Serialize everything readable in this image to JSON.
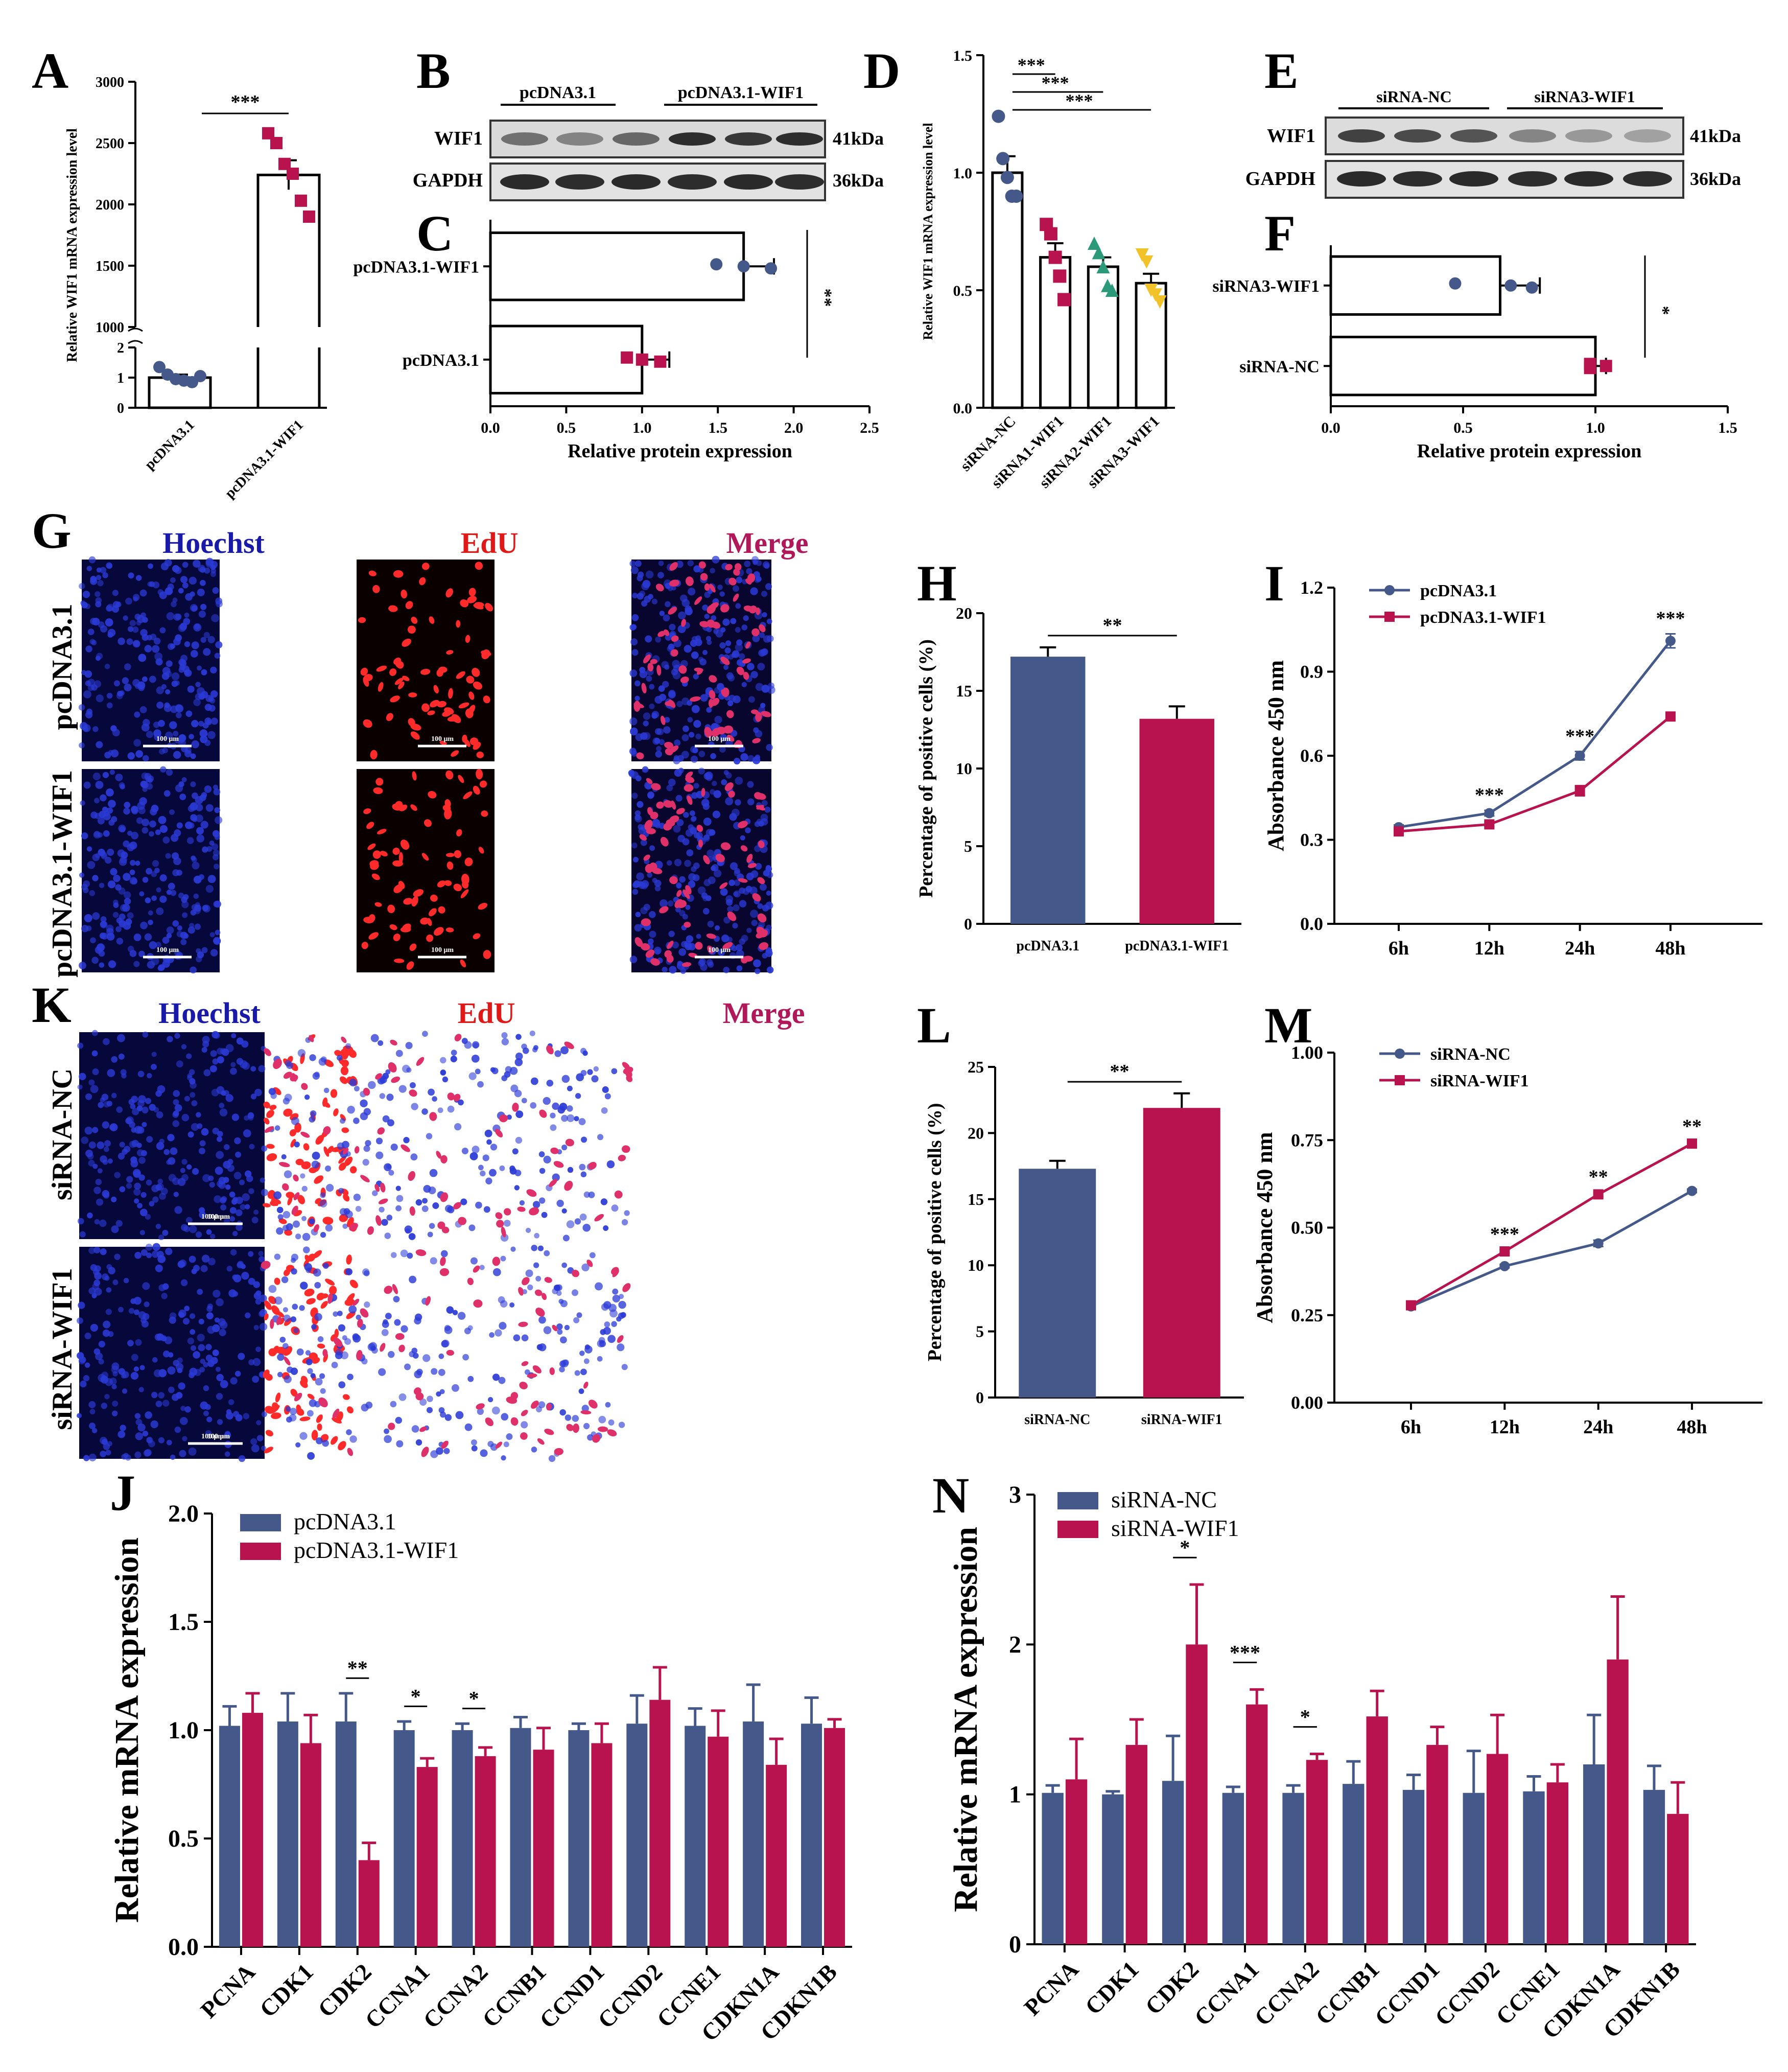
{
  "colors": {
    "blue": "#44598a",
    "red": "#b8124f",
    "green": "#2a9a7a",
    "yellow": "#f2c22a",
    "hoechst_blue": "#1a1aa8",
    "edu_red": "#e01818",
    "merge_purple": "#b0185a"
  },
  "panel_letters": [
    "A",
    "B",
    "C",
    "D",
    "E",
    "F",
    "G",
    "H",
    "I",
    "J",
    "K",
    "L",
    "M",
    "N"
  ],
  "units": {
    "kda41": "41kDa",
    "kda36": "36kDa",
    "scalebar": "100 μm"
  },
  "blots": {
    "b": {
      "groups": [
        "pcDNA3.1",
        "pcDNA3.1-WIF1"
      ],
      "rows": [
        "WIF1",
        "GAPDH"
      ]
    },
    "e": {
      "groups": [
        "siRNA-NC",
        "siRNA3-WIF1"
      ],
      "rows": [
        "WIF1",
        "GAPDH"
      ]
    }
  },
  "micro": {
    "g": {
      "columns": [
        "Hoechst",
        "EdU",
        "Merge"
      ],
      "rows": [
        "pcDNA3.1",
        "pcDNA3.1-WIF1"
      ]
    },
    "k": {
      "columns": [
        "Hoechst",
        "EdU",
        "Merge"
      ],
      "rows": [
        "siRNA-NC",
        "siRNA-WIF1"
      ]
    }
  },
  "chart_data": [
    {
      "id": "A",
      "type": "bar",
      "ylabel": "Relative WIF1 mRNA expression level",
      "categories": [
        "pcDNA3.1",
        "pcDNA3.1-WIF1"
      ],
      "values": [
        1.0,
        2240
      ],
      "errors": [
        0.1,
        120
      ],
      "points": [
        [
          1.35,
          1.1,
          0.95,
          0.9,
          0.85,
          1.05
        ],
        [
          2580,
          2500,
          2330,
          2250,
          2030,
          1900
        ]
      ],
      "yticks_lower": [
        "0",
        "1",
        "2"
      ],
      "yticks_upper": [
        "1000",
        "1500",
        "2000",
        "2500",
        "3000"
      ],
      "sig": [
        "***"
      ]
    },
    {
      "id": "C",
      "type": "bar",
      "orientation": "horizontal",
      "xlabel": "Relative protein expression",
      "categories": [
        "pcDNA3.1-WIF1",
        "pcDNA3.1"
      ],
      "values": [
        1.67,
        1.0
      ],
      "errors": [
        0.2,
        0.18
      ],
      "points": [
        [
          1.49,
          1.67,
          1.85
        ],
        [
          0.9,
          1.0,
          1.12
        ]
      ],
      "xlim": [
        0,
        2.5
      ],
      "ticks": [
        "0.0",
        "0.5",
        "1.0",
        "1.5",
        "2.0",
        "2.5"
      ],
      "sig": [
        "**"
      ]
    },
    {
      "id": "D",
      "type": "bar",
      "ylabel": "Relative WIF1 mRNA expression level",
      "categories": [
        "siRNA-NC",
        "siRNA1-WIF1",
        "siRNA2-WIF1",
        "siRNA3-WIF1"
      ],
      "values": [
        1.0,
        0.64,
        0.6,
        0.53
      ],
      "errors": [
        0.07,
        0.06,
        0.04,
        0.04
      ],
      "points": [
        [
          1.24,
          1.06,
          0.98,
          0.9,
          0.9
        ],
        [
          0.78,
          0.74,
          0.64,
          0.56,
          0.46
        ],
        [
          0.7,
          0.66,
          0.6,
          0.52,
          0.5
        ],
        [
          0.65,
          0.62,
          0.5,
          0.48,
          0.45
        ]
      ],
      "ylim": [
        0,
        1.5
      ],
      "ticks": [
        "0.0",
        "0.5",
        "1.0",
        "1.5"
      ],
      "sig": [
        "***",
        "***",
        "***"
      ]
    },
    {
      "id": "F",
      "type": "bar",
      "orientation": "horizontal",
      "xlabel": "Relative protein expression",
      "categories": [
        "siRNA3-WIF1",
        "siRNA-NC"
      ],
      "values": [
        0.64,
        1.0
      ],
      "errors": [
        0.15,
        0.04
      ],
      "points": [
        [
          0.47,
          0.68,
          0.76
        ],
        [
          0.98,
          1.04,
          0.98
        ]
      ],
      "xlim": [
        0,
        1.5
      ],
      "ticks": [
        "0.0",
        "0.5",
        "1.0",
        "1.5"
      ],
      "sig": [
        "*"
      ]
    },
    {
      "id": "H",
      "type": "bar",
      "ylabel": "Percentage of positive cells (%)",
      "categories": [
        "pcDNA3.1",
        "pcDNA3.1-WIF1"
      ],
      "values": [
        17.2,
        13.2
      ],
      "errors": [
        0.6,
        0.8
      ],
      "ylim": [
        0,
        20
      ],
      "ticks": [
        "0",
        "5",
        "10",
        "15",
        "20"
      ],
      "sig": [
        "**"
      ]
    },
    {
      "id": "I",
      "type": "line",
      "ylabel": "Absorbance 450 nm",
      "x": [
        "6h",
        "12h",
        "24h",
        "48h"
      ],
      "series": [
        {
          "name": "pcDNA3.1",
          "values": [
            0.345,
            0.395,
            0.6,
            1.01
          ],
          "errors": [
            0.008,
            0.01,
            0.015,
            0.025
          ]
        },
        {
          "name": "pcDNA3.1-WIF1",
          "values": [
            0.33,
            0.355,
            0.475,
            0.74
          ],
          "errors": [
            0.008,
            0.008,
            0.018,
            0.015
          ]
        }
      ],
      "ylim": [
        0,
        1.2
      ],
      "ticks": [
        "0.0",
        "0.3",
        "0.6",
        "0.9",
        "1.2"
      ],
      "sig": [
        "***",
        "***",
        "***"
      ]
    },
    {
      "id": "L",
      "type": "bar",
      "ylabel": "Percentage of positive cells (%)",
      "categories": [
        "siRNA-NC",
        "siRNA-WIF1"
      ],
      "values": [
        17.3,
        21.9
      ],
      "errors": [
        0.6,
        1.1
      ],
      "ylim": [
        0,
        25
      ],
      "ticks": [
        "0",
        "5",
        "10",
        "15",
        "20",
        "25"
      ],
      "sig": [
        "**"
      ]
    },
    {
      "id": "M",
      "type": "line",
      "ylabel": "Absorbance 450 nm",
      "x": [
        "6h",
        "12h",
        "24h",
        "48h"
      ],
      "series": [
        {
          "name": "siRNA-NC",
          "values": [
            0.275,
            0.39,
            0.455,
            0.605
          ],
          "errors": [
            0.004,
            0.005,
            0.009,
            0.005
          ]
        },
        {
          "name": "siRNA-WIF1",
          "values": [
            0.278,
            0.432,
            0.595,
            0.74
          ],
          "errors": [
            0.004,
            0.005,
            0.006,
            0.005
          ]
        }
      ],
      "ylim": [
        0,
        1.0
      ],
      "ticks": [
        "0.00",
        "0.25",
        "0.50",
        "0.75",
        "1.00"
      ],
      "sig": [
        "***",
        "**",
        "**"
      ]
    },
    {
      "id": "J",
      "type": "bar",
      "ylabel": "Relative mRNA expression",
      "categories": [
        "PCNA",
        "CDK1",
        "CDK2",
        "CCNA1",
        "CCNA2",
        "CCNB1",
        "CCND1",
        "CCND2",
        "CCNE1",
        "CDKN1A",
        "CDKN1B"
      ],
      "series": [
        {
          "name": "pcDNA3.1",
          "values": [
            1.02,
            1.04,
            1.04,
            1.0,
            1.0,
            1.01,
            1.0,
            1.03,
            1.02,
            1.04,
            1.03
          ],
          "errors": [
            0.09,
            0.13,
            0.13,
            0.04,
            0.03,
            0.05,
            0.03,
            0.13,
            0.08,
            0.17,
            0.12
          ]
        },
        {
          "name": "pcDNA3.1-WIF1",
          "values": [
            1.08,
            0.94,
            0.4,
            0.83,
            0.88,
            0.91,
            0.94,
            1.14,
            0.97,
            0.84,
            1.01
          ]
        }
      ],
      "errors2": [
        0.09,
        0.13,
        0.08,
        0.04,
        0.04,
        0.1,
        0.09,
        0.15,
        0.12,
        0.12,
        0.04
      ],
      "ylim": [
        0,
        2.0
      ],
      "ticks": [
        "0.0",
        "0.5",
        "1.0",
        "1.5",
        "2.0"
      ],
      "sig": [
        "",
        "",
        "**",
        "*",
        "*",
        "",
        "",
        "",
        "",
        "",
        ""
      ]
    },
    {
      "id": "N",
      "type": "bar",
      "ylabel": "Relative mRNA expression",
      "categories": [
        "PCNA",
        "CDK1",
        "CDK2",
        "CCNA1",
        "CCNA2",
        "CCNB1",
        "CCND1",
        "CCND2",
        "CCNE1",
        "CDKN1A",
        "CDKN1B"
      ],
      "series": [
        {
          "name": "siRNA-NC",
          "values": [
            1.01,
            1.0,
            1.09,
            1.01,
            1.01,
            1.07,
            1.03,
            1.01,
            1.02,
            1.2,
            1.03
          ],
          "errors": [
            0.05,
            0.02,
            0.3,
            0.04,
            0.05,
            0.15,
            0.1,
            0.28,
            0.1,
            0.33,
            0.16
          ]
        },
        {
          "name": "siRNA-WIF1",
          "values": [
            1.1,
            1.33,
            2.0,
            1.6,
            1.23,
            1.52,
            1.33,
            1.27,
            1.08,
            1.9,
            0.87
          ]
        }
      ],
      "errors2": [
        0.27,
        0.17,
        0.4,
        0.1,
        0.04,
        0.17,
        0.12,
        0.26,
        0.12,
        0.42,
        0.21
      ],
      "ylim": [
        0,
        3
      ],
      "ticks": [
        "0",
        "1",
        "2",
        "3"
      ],
      "sig": [
        "",
        "",
        "*",
        "***",
        "*",
        "",
        "",
        "",
        "",
        "",
        ""
      ]
    }
  ]
}
